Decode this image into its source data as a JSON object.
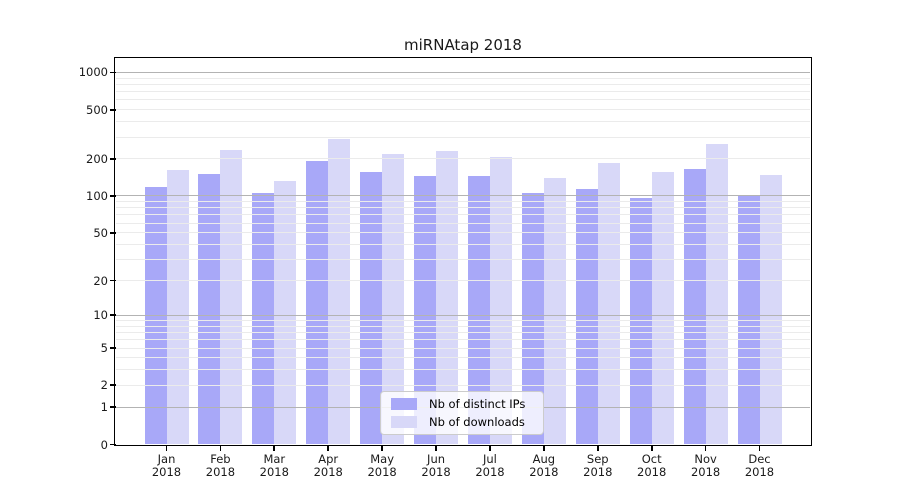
{
  "figure": {
    "title": "miRNAtap 2018",
    "background": "#ffffff"
  },
  "chart_data": {
    "type": "bar",
    "title": "miRNAtap 2018",
    "categories": [
      {
        "month": "Jan",
        "year": "2018"
      },
      {
        "month": "Feb",
        "year": "2018"
      },
      {
        "month": "Mar",
        "year": "2018"
      },
      {
        "month": "Apr",
        "year": "2018"
      },
      {
        "month": "May",
        "year": "2018"
      },
      {
        "month": "Jun",
        "year": "2018"
      },
      {
        "month": "Jul",
        "year": "2018"
      },
      {
        "month": "Aug",
        "year": "2018"
      },
      {
        "month": "Sep",
        "year": "2018"
      },
      {
        "month": "Oct",
        "year": "2018"
      },
      {
        "month": "Nov",
        "year": "2018"
      },
      {
        "month": "Dec",
        "year": "2018"
      }
    ],
    "series": [
      {
        "name": "Nb of distinct IPs",
        "key": "distinct-ips",
        "color": "#a8a8f8",
        "values": [
          118,
          150,
          105,
          192,
          157,
          145,
          145,
          105,
          114,
          96,
          166,
          102
        ]
      },
      {
        "name": "Nb of downloads",
        "key": "downloads",
        "color": "#d8d8f8",
        "values": [
          162,
          236,
          132,
          288,
          219,
          233,
          209,
          140,
          185,
          158,
          264,
          147
        ]
      }
    ],
    "y_axis": {
      "scale": "log1p",
      "ylim": [
        0,
        1285
      ],
      "ticks": [
        0,
        1,
        2,
        5,
        10,
        20,
        50,
        100,
        200,
        500,
        1000
      ],
      "major_gridlines": [
        1,
        10,
        100,
        1000
      ],
      "minor_gridlines": [
        2,
        3,
        4,
        5,
        6,
        7,
        8,
        9,
        20,
        30,
        40,
        50,
        60,
        70,
        80,
        90,
        200,
        300,
        400,
        500,
        600,
        700,
        800,
        900
      ]
    },
    "grid": {
      "major_color": "#b3b3b3",
      "minor_color": "#ebebeb"
    },
    "axis_color": "#000000",
    "legend": {
      "position": "lower center"
    }
  }
}
